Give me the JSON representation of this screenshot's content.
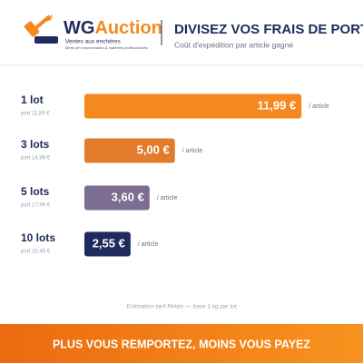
{
  "brand": {
    "prefix": "WG",
    "suffix": "Auction",
    "tagline": "Ventes aux enchères",
    "subline": "Biens de consommation & matériels professionnels"
  },
  "chart_data": {
    "type": "bar",
    "orientation": "horizontal",
    "title": "DIVISEZ VOS FRAIS DE PORT",
    "subtitle": "Coût d'expédition par article gagné",
    "categories": [
      "1 lot",
      "3 lots",
      "5 lots",
      "10 lots"
    ],
    "category_notes": [
      "port 11,99 €",
      "port 14,99 €",
      "port 17,99 €",
      "port 25,49 €"
    ],
    "values": [
      11.99,
      5.0,
      3.6,
      2.55
    ],
    "value_labels": [
      "11,99 €",
      "5,00 €",
      "3,60 €",
      "2,55 €"
    ],
    "colors": [
      "#f5891f",
      "#e37b2c",
      "#7b6e90",
      "#1f2b5c"
    ],
    "unit_label": "/ article",
    "footnote": "Estimation tarif Relais — base 1 kg par lot"
  },
  "banner": "PLUS VOUS REMPORTEZ, MOINS VOUS PAYEZ"
}
